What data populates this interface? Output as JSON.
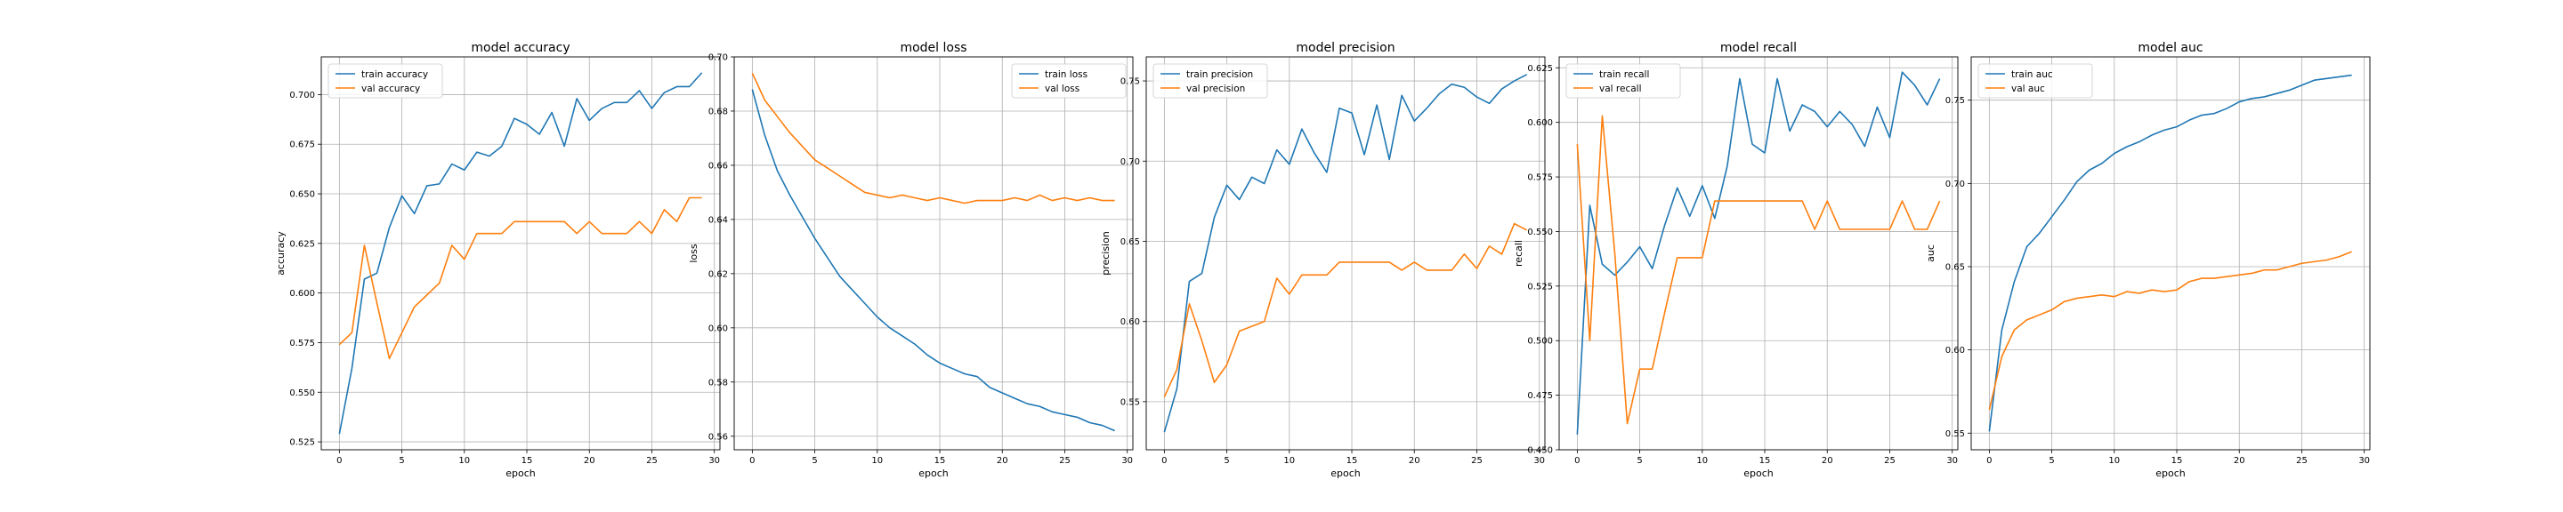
{
  "colors": {
    "train": "#1f77b4",
    "val": "#ff7f0e",
    "grid": "#b0b0b0"
  },
  "chart_data": [
    {
      "type": "line",
      "title": "model accuracy",
      "xlabel": "epoch",
      "ylabel": "accuracy",
      "xlim": [
        -1.45,
        30.45
      ],
      "ylim": [
        0.521,
        0.719
      ],
      "xticks": [
        0,
        5,
        10,
        15,
        20,
        25,
        30
      ],
      "yticks": [
        0.525,
        0.55,
        0.575,
        0.6,
        0.625,
        0.65,
        0.675,
        0.7
      ],
      "ytick_labels": [
        "0.525",
        "0.550",
        "0.575",
        "0.600",
        "0.625",
        "0.650",
        "0.675",
        "0.700"
      ],
      "grid": true,
      "legend": "upper left",
      "series": [
        {
          "name": "train accuracy",
          "color": "train",
          "values": [
            0.529,
            0.562,
            0.607,
            0.61,
            0.633,
            0.649,
            0.64,
            0.654,
            0.655,
            0.665,
            0.662,
            0.671,
            0.669,
            0.674,
            0.688,
            0.685,
            0.68,
            0.691,
            0.674,
            0.698,
            0.687,
            0.693,
            0.696,
            0.696,
            0.702,
            0.693,
            0.701,
            0.704,
            0.704,
            0.711
          ]
        },
        {
          "name": "val accuracy",
          "color": "val",
          "values": [
            0.574,
            0.58,
            0.624,
            0.595,
            0.567,
            0.58,
            0.593,
            0.599,
            0.605,
            0.624,
            0.617,
            0.63,
            0.63,
            0.63,
            0.636,
            0.636,
            0.636,
            0.636,
            0.636,
            0.63,
            0.636,
            0.63,
            0.63,
            0.63,
            0.636,
            0.63,
            0.642,
            0.636,
            0.648,
            0.648
          ]
        }
      ]
    },
    {
      "type": "line",
      "title": "model loss",
      "xlabel": "epoch",
      "ylabel": "loss",
      "xlim": [
        -1.45,
        30.45
      ],
      "ylim": [
        0.555,
        0.7
      ],
      "xticks": [
        0,
        5,
        10,
        15,
        20,
        25,
        30
      ],
      "yticks": [
        0.56,
        0.58,
        0.6,
        0.62,
        0.64,
        0.66,
        0.68,
        0.7
      ],
      "ytick_labels": [
        "0.56",
        "0.58",
        "0.60",
        "0.62",
        "0.64",
        "0.66",
        "0.68",
        "0.70"
      ],
      "grid": true,
      "legend": "upper right",
      "series": [
        {
          "name": "train loss",
          "color": "train",
          "values": [
            0.688,
            0.671,
            0.658,
            0.649,
            0.641,
            0.633,
            0.626,
            0.619,
            0.614,
            0.609,
            0.604,
            0.6,
            0.597,
            0.594,
            0.59,
            0.587,
            0.585,
            0.583,
            0.582,
            0.578,
            0.576,
            0.574,
            0.572,
            0.571,
            0.569,
            0.568,
            0.567,
            0.565,
            0.564,
            0.562
          ]
        },
        {
          "name": "val loss",
          "color": "val",
          "values": [
            0.694,
            0.684,
            0.678,
            0.672,
            0.667,
            0.662,
            0.659,
            0.656,
            0.653,
            0.65,
            0.649,
            0.648,
            0.649,
            0.648,
            0.647,
            0.648,
            0.647,
            0.646,
            0.647,
            0.647,
            0.647,
            0.648,
            0.647,
            0.649,
            0.647,
            0.648,
            0.647,
            0.648,
            0.647,
            0.647
          ]
        }
      ]
    },
    {
      "type": "line",
      "title": "model precision",
      "xlabel": "epoch",
      "ylabel": "precision",
      "xlim": [
        -1.45,
        30.45
      ],
      "ylim": [
        0.52,
        0.765
      ],
      "xticks": [
        0,
        5,
        10,
        15,
        20,
        25,
        30
      ],
      "yticks": [
        0.55,
        0.6,
        0.65,
        0.7,
        0.75
      ],
      "ytick_labels": [
        "0.55",
        "0.60",
        "0.65",
        "0.70",
        "0.75"
      ],
      "grid": true,
      "legend": "upper left",
      "series": [
        {
          "name": "train precision",
          "color": "train",
          "values": [
            0.531,
            0.558,
            0.625,
            0.63,
            0.665,
            0.685,
            0.676,
            0.69,
            0.686,
            0.707,
            0.698,
            0.72,
            0.705,
            0.693,
            0.733,
            0.73,
            0.704,
            0.735,
            0.701,
            0.741,
            0.725,
            0.733,
            0.742,
            0.748,
            0.746,
            0.74,
            0.736,
            0.745,
            0.75,
            0.754
          ]
        },
        {
          "name": "val precision",
          "color": "val",
          "values": [
            0.553,
            0.57,
            0.611,
            0.588,
            0.562,
            0.573,
            0.594,
            0.597,
            0.6,
            0.627,
            0.617,
            0.629,
            0.629,
            0.629,
            0.637,
            0.637,
            0.637,
            0.637,
            0.637,
            0.632,
            0.637,
            0.632,
            0.632,
            0.632,
            0.642,
            0.633,
            0.647,
            0.642,
            0.661,
            0.657
          ]
        }
      ]
    },
    {
      "type": "line",
      "title": "model recall",
      "xlabel": "epoch",
      "ylabel": "recall",
      "xlim": [
        -1.45,
        30.45
      ],
      "ylim": [
        0.45,
        0.63
      ],
      "xticks": [
        0,
        5,
        10,
        15,
        20,
        25,
        30
      ],
      "yticks": [
        0.45,
        0.475,
        0.5,
        0.525,
        0.55,
        0.575,
        0.6,
        0.625
      ],
      "ytick_labels": [
        "0.450",
        "0.475",
        "0.500",
        "0.525",
        "0.550",
        "0.575",
        "0.600",
        "0.625"
      ],
      "grid": true,
      "legend": "upper left",
      "series": [
        {
          "name": "train recall",
          "color": "train",
          "values": [
            0.457,
            0.562,
            0.535,
            0.53,
            0.536,
            0.543,
            0.533,
            0.553,
            0.57,
            0.557,
            0.571,
            0.556,
            0.58,
            0.62,
            0.59,
            0.586,
            0.62,
            0.596,
            0.608,
            0.605,
            0.598,
            0.605,
            0.599,
            0.589,
            0.607,
            0.593,
            0.623,
            0.617,
            0.608,
            0.62
          ]
        },
        {
          "name": "val recall",
          "color": "val",
          "values": [
            0.59,
            0.5,
            0.603,
            0.54,
            0.462,
            0.487,
            0.487,
            0.513,
            0.538,
            0.538,
            0.538,
            0.564,
            0.564,
            0.564,
            0.564,
            0.564,
            0.564,
            0.564,
            0.564,
            0.551,
            0.564,
            0.551,
            0.551,
            0.551,
            0.551,
            0.551,
            0.564,
            0.551,
            0.551,
            0.564
          ]
        }
      ]
    },
    {
      "type": "line",
      "title": "model auc",
      "xlabel": "epoch",
      "ylabel": "auc",
      "xlim": [
        -1.45,
        30.45
      ],
      "ylim": [
        0.54,
        0.776
      ],
      "xticks": [
        0,
        5,
        10,
        15,
        20,
        25,
        30
      ],
      "yticks": [
        0.55,
        0.6,
        0.65,
        0.7,
        0.75
      ],
      "ytick_labels": [
        "0.55",
        "0.60",
        "0.65",
        "0.70",
        "0.75"
      ],
      "grid": true,
      "legend": "upper left",
      "series": [
        {
          "name": "train auc",
          "color": "train",
          "values": [
            0.551,
            0.612,
            0.641,
            0.662,
            0.67,
            0.68,
            0.69,
            0.701,
            0.708,
            0.712,
            0.718,
            0.722,
            0.725,
            0.729,
            0.732,
            0.734,
            0.738,
            0.741,
            0.742,
            0.745,
            0.749,
            0.751,
            0.752,
            0.754,
            0.756,
            0.759,
            0.762,
            0.763,
            0.764,
            0.765
          ]
        },
        {
          "name": "val auc",
          "color": "val",
          "values": [
            0.564,
            0.596,
            0.612,
            0.618,
            0.621,
            0.624,
            0.629,
            0.631,
            0.632,
            0.633,
            0.632,
            0.635,
            0.634,
            0.636,
            0.635,
            0.636,
            0.641,
            0.643,
            0.643,
            0.644,
            0.645,
            0.646,
            0.648,
            0.648,
            0.65,
            0.652,
            0.653,
            0.654,
            0.656,
            0.659
          ]
        }
      ]
    }
  ]
}
